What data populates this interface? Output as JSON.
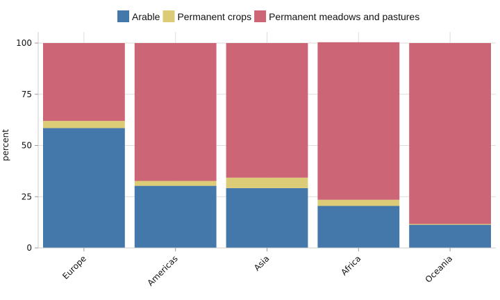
{
  "chart_data": {
    "type": "bar",
    "stacked": true,
    "categories": [
      "Europe",
      "Americas",
      "Asia",
      "Africa",
      "Oceania"
    ],
    "series": [
      {
        "name": "Arable",
        "color": "#4477aa",
        "values": [
          58.5,
          30.3,
          29.2,
          20.5,
          11.3
        ]
      },
      {
        "name": "Permanent crops",
        "color": "#ddcc77",
        "values": [
          3.5,
          2.4,
          5.1,
          3.0,
          0.4
        ]
      },
      {
        "name": "Permanent meadows and pastures",
        "color": "#cc6677",
        "values": [
          38.0,
          67.3,
          65.7,
          76.9,
          88.3
        ]
      }
    ],
    "ylabel": "percent",
    "ylim": [
      0,
      100
    ],
    "yticks": [
      0,
      25,
      50,
      75,
      100
    ],
    "legend": "top",
    "grid": true
  }
}
